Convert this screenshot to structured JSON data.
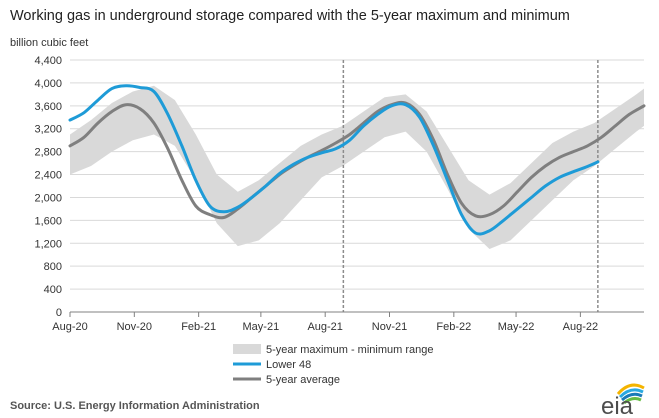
{
  "chart_data": {
    "type": "line",
    "title": "Working gas in underground  storage compared with the 5-year maximum and minimum",
    "ylabel": "billion cubic feet",
    "xlabel": "",
    "ylim": [
      0,
      4400
    ],
    "yticks": [
      "0",
      "400",
      "800",
      "1,200",
      "1,600",
      "2,000",
      "2,400",
      "2,800",
      "3,200",
      "3,600",
      "4,000",
      "4,400"
    ],
    "ytick_values": [
      0,
      400,
      800,
      1200,
      1600,
      2000,
      2400,
      2800,
      3200,
      3600,
      4000,
      4400
    ],
    "xticks": [
      "Aug-20",
      "Nov-20",
      "Feb-21",
      "May-21",
      "Aug-21",
      "Nov-21",
      "Feb-22",
      "May-22",
      "Aug-22"
    ],
    "xtick_values": [
      "2020-08-01",
      "2020-11-01",
      "2021-02-01",
      "2021-05-01",
      "2021-08-01",
      "2021-11-01",
      "2022-02-01",
      "2022-05-01",
      "2022-08-01"
    ],
    "xlim": [
      "2020-08-01",
      "2022-10-31"
    ],
    "grid": "horizontal",
    "vlines": [
      "2021-08-27",
      "2022-08-26"
    ],
    "legend_position": "bottom",
    "series": [
      {
        "name": "5-year maximum - minimum range",
        "kind": "band",
        "color": "#d9d9d9",
        "x": [
          "2020-08-01",
          "2020-08-31",
          "2020-09-30",
          "2020-10-30",
          "2020-11-29",
          "2020-12-29",
          "2021-01-28",
          "2021-02-27",
          "2021-03-29",
          "2021-04-28",
          "2021-05-28",
          "2021-06-27",
          "2021-07-27",
          "2021-08-26",
          "2021-09-25",
          "2021-10-25",
          "2021-11-24",
          "2021-12-24",
          "2022-01-23",
          "2022-02-22",
          "2022-03-24",
          "2022-04-23",
          "2022-05-23",
          "2022-06-22",
          "2022-07-22",
          "2022-08-21",
          "2022-09-20",
          "2022-10-20",
          "2022-10-31"
        ],
        "upper": [
          3100,
          3350,
          3650,
          3850,
          3950,
          3700,
          3100,
          2400,
          2100,
          2300,
          2600,
          2900,
          3100,
          3250,
          3500,
          3750,
          3800,
          3500,
          2900,
          2300,
          2050,
          2250,
          2600,
          2950,
          3150,
          3300,
          3550,
          3800,
          3900
        ],
        "lower": [
          2400,
          2550,
          2800,
          3000,
          3100,
          2900,
          2300,
          1550,
          1150,
          1250,
          1550,
          1950,
          2350,
          2550,
          2800,
          3050,
          3150,
          2800,
          2150,
          1450,
          1100,
          1250,
          1600,
          1950,
          2300,
          2550,
          2850,
          3150,
          3250
        ]
      },
      {
        "name": "Lower 48",
        "kind": "line",
        "color": "#1e9bd7",
        "x": [
          "2020-08-01",
          "2020-08-21",
          "2020-09-10",
          "2020-09-30",
          "2020-10-20",
          "2020-11-09",
          "2020-11-29",
          "2020-12-19",
          "2021-01-08",
          "2021-01-28",
          "2021-02-17",
          "2021-03-09",
          "2021-03-29",
          "2021-04-18",
          "2021-05-08",
          "2021-05-28",
          "2021-06-17",
          "2021-07-07",
          "2021-07-27",
          "2021-08-16",
          "2021-09-05",
          "2021-09-25",
          "2021-10-15",
          "2021-11-04",
          "2021-11-24",
          "2021-12-14",
          "2022-01-03",
          "2022-01-23",
          "2022-02-12",
          "2022-03-04",
          "2022-03-24",
          "2022-04-13",
          "2022-05-03",
          "2022-05-23",
          "2022-06-12",
          "2022-07-02",
          "2022-07-22",
          "2022-08-11",
          "2022-08-26"
        ],
        "values": [
          3350,
          3480,
          3700,
          3900,
          3950,
          3920,
          3850,
          3450,
          2900,
          2300,
          1850,
          1750,
          1830,
          2000,
          2200,
          2420,
          2580,
          2700,
          2780,
          2850,
          3000,
          3250,
          3450,
          3600,
          3620,
          3400,
          2900,
          2300,
          1700,
          1380,
          1420,
          1600,
          1800,
          2000,
          2200,
          2350,
          2450,
          2540,
          2620
        ]
      },
      {
        "name": "5-year average",
        "kind": "line",
        "color": "#7f7f7f",
        "x": [
          "2020-08-01",
          "2020-08-21",
          "2020-09-10",
          "2020-09-30",
          "2020-10-20",
          "2020-11-09",
          "2020-11-29",
          "2020-12-19",
          "2021-01-08",
          "2021-01-28",
          "2021-02-17",
          "2021-03-09",
          "2021-03-29",
          "2021-04-18",
          "2021-05-08",
          "2021-05-28",
          "2021-06-17",
          "2021-07-07",
          "2021-07-27",
          "2021-08-16",
          "2021-09-05",
          "2021-09-25",
          "2021-10-15",
          "2021-11-04",
          "2021-11-24",
          "2021-12-14",
          "2022-01-03",
          "2022-01-23",
          "2022-02-12",
          "2022-03-04",
          "2022-03-24",
          "2022-04-13",
          "2022-05-03",
          "2022-05-23",
          "2022-06-12",
          "2022-07-02",
          "2022-07-22",
          "2022-08-11",
          "2022-08-31",
          "2022-09-20",
          "2022-10-10",
          "2022-10-31"
        ],
        "values": [
          2900,
          3050,
          3300,
          3500,
          3620,
          3550,
          3300,
          2850,
          2300,
          1850,
          1700,
          1650,
          1800,
          2000,
          2200,
          2400,
          2560,
          2700,
          2820,
          2950,
          3100,
          3300,
          3500,
          3620,
          3650,
          3450,
          3000,
          2400,
          1900,
          1680,
          1700,
          1850,
          2100,
          2350,
          2550,
          2700,
          2800,
          2900,
          3050,
          3250,
          3450,
          3600
        ]
      }
    ]
  },
  "footer": {
    "source": "Source:  U.S. Energy Information Administration"
  },
  "logo": {
    "text": "eia",
    "colors": [
      "#f4b400",
      "#2aa9e0",
      "#1a7ab7",
      "#66bb44"
    ]
  }
}
